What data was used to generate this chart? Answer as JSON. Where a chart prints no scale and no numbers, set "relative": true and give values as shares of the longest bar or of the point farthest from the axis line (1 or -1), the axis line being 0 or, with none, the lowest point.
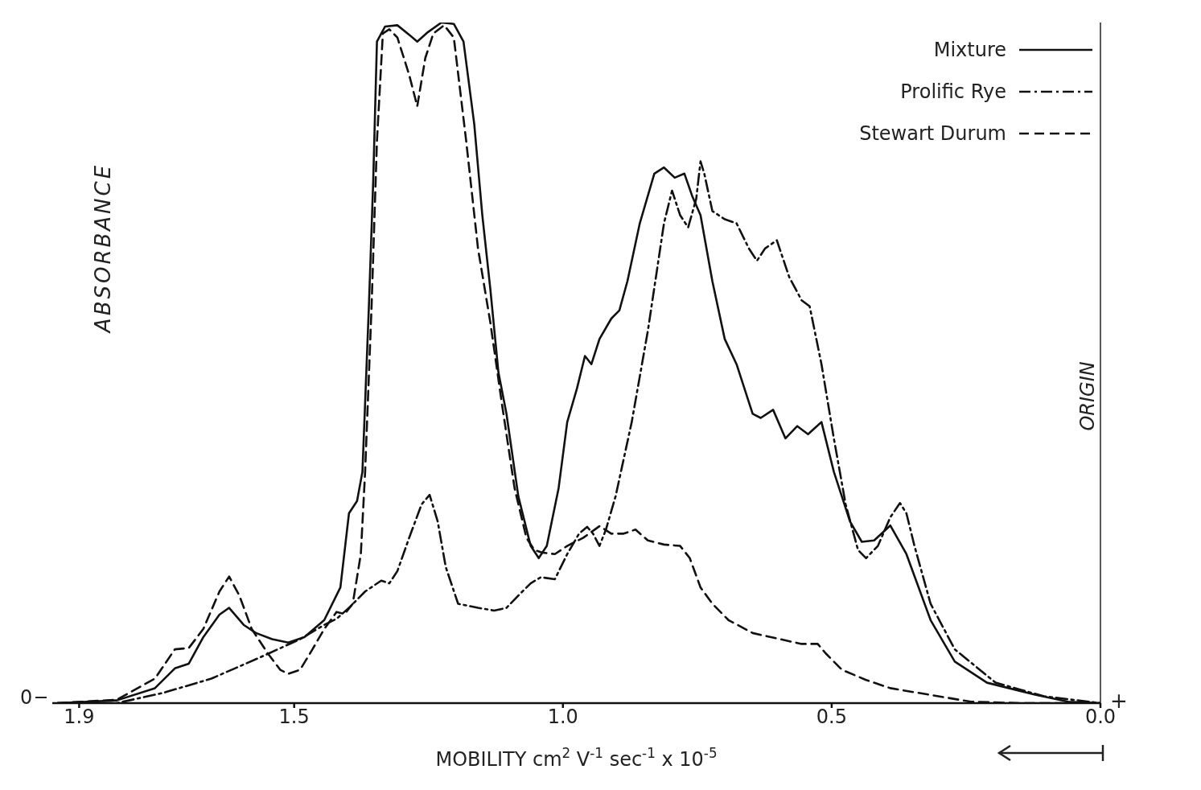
{
  "chart_data": {
    "type": "line",
    "relative": true,
    "xlabel": "MOBILITY cm$^{2}$ V$^{-1}$ sec$^{-1}$ x 10$^{-5}$",
    "ylabel": "ABSORBANCE",
    "xlim": [
      1.95,
      0
    ],
    "xticks": [
      1.9,
      1.5,
      {
        "value": 1,
        "label": "1.0"
      },
      0.5,
      {
        "value": 0,
        "label": "0.0"
      }
    ],
    "grid": false,
    "legend": "top right",
    "marker": "none",
    "annotations": [
      "0",
      "+"
    ],
    "ref_lines": [
      {
        "axis": "x",
        "value": 0,
        "label": "ORIGIN",
        "color": "#222222"
      }
    ],
    "series": [
      {
        "name": "Mixture",
        "color": "#111111",
        "line_style": "solid",
        "x": [
          1.94,
          1.83,
          1.759,
          1.722,
          1.696,
          1.669,
          1.639,
          1.621,
          1.594,
          1.571,
          1.541,
          1.511,
          1.481,
          1.444,
          1.414,
          1.398,
          1.383,
          1.373,
          1.361,
          1.353,
          1.346,
          1.331,
          1.308,
          1.286,
          1.271,
          1.251,
          1.226,
          1.203,
          1.185,
          1.165,
          1.15,
          1.135,
          1.12,
          1.105,
          1.083,
          1.06,
          1.045,
          1.03,
          1.008,
          0.992,
          0.974,
          0.959,
          0.947,
          0.932,
          0.91,
          0.895,
          0.88,
          0.857,
          0.83,
          0.812,
          0.792,
          0.774,
          0.759,
          0.744,
          0.722,
          0.699,
          0.677,
          0.647,
          0.632,
          0.609,
          0.586,
          0.564,
          0.544,
          0.519,
          0.496,
          0.466,
          0.444,
          0.421,
          0.391,
          0.361,
          0.316,
          0.271,
          0.211,
          0.12,
          0.06,
          0
        ],
        "values": [
          0,
          0.004,
          0.022,
          0.051,
          0.058,
          0.097,
          0.13,
          0.14,
          0.115,
          0.103,
          0.094,
          0.089,
          0.097,
          0.122,
          0.17,
          0.279,
          0.297,
          0.34,
          0.583,
          0.766,
          0.972,
          0.994,
          0.996,
          0.982,
          0.972,
          0.986,
          1,
          0.998,
          0.972,
          0.851,
          0.717,
          0.608,
          0.486,
          0.425,
          0.304,
          0.231,
          0.213,
          0.231,
          0.316,
          0.413,
          0.462,
          0.51,
          0.498,
          0.535,
          0.565,
          0.577,
          0.62,
          0.705,
          0.778,
          0.787,
          0.772,
          0.778,
          0.744,
          0.717,
          0.62,
          0.535,
          0.498,
          0.425,
          0.419,
          0.431,
          0.389,
          0.407,
          0.395,
          0.413,
          0.34,
          0.267,
          0.237,
          0.239,
          0.261,
          0.219,
          0.122,
          0.061,
          0.03,
          0.012,
          0.002,
          0
        ]
      },
      {
        "name": "Prolific Rye",
        "color": "#111111",
        "line_style": "dashdot",
        "x": [
          1.94,
          1.83,
          1.744,
          1.654,
          1.564,
          1.489,
          1.444,
          1.421,
          1.398,
          1.368,
          1.338,
          1.323,
          1.308,
          1.286,
          1.263,
          1.248,
          1.233,
          1.218,
          1.195,
          1.158,
          1.128,
          1.105,
          1.083,
          1.06,
          1.041,
          1.015,
          0.992,
          0.97,
          0.955,
          0.944,
          0.932,
          0.92,
          0.902,
          0.872,
          0.842,
          0.812,
          0.797,
          0.782,
          0.767,
          0.752,
          0.744,
          0.737,
          0.722,
          0.699,
          0.677,
          0.654,
          0.639,
          0.624,
          0.602,
          0.579,
          0.556,
          0.541,
          0.519,
          0.496,
          0.474,
          0.451,
          0.436,
          0.414,
          0.391,
          0.373,
          0.361,
          0.346,
          0.316,
          0.271,
          0.195,
          0.105,
          0
        ],
        "values": [
          0,
          0,
          0.015,
          0.036,
          0.067,
          0.094,
          0.115,
          0.124,
          0.14,
          0.164,
          0.18,
          0.176,
          0.194,
          0.243,
          0.292,
          0.306,
          0.267,
          0.2,
          0.146,
          0.14,
          0.136,
          0.14,
          0.158,
          0.176,
          0.185,
          0.182,
          0.219,
          0.249,
          0.259,
          0.249,
          0.231,
          0.255,
          0.304,
          0.413,
          0.547,
          0.705,
          0.753,
          0.717,
          0.699,
          0.741,
          0.796,
          0.778,
          0.723,
          0.711,
          0.705,
          0.668,
          0.65,
          0.668,
          0.68,
          0.626,
          0.592,
          0.583,
          0.498,
          0.389,
          0.292,
          0.225,
          0.213,
          0.231,
          0.273,
          0.294,
          0.279,
          0.231,
          0.146,
          0.079,
          0.03,
          0.01,
          0
        ]
      },
      {
        "name": "Stewart Durum",
        "color": "#111111",
        "line_style": "dashed",
        "x": [
          1.94,
          1.83,
          1.759,
          1.722,
          1.696,
          1.669,
          1.639,
          1.621,
          1.602,
          1.579,
          1.549,
          1.526,
          1.511,
          1.489,
          1.466,
          1.444,
          1.421,
          1.406,
          1.391,
          1.376,
          1.368,
          1.356,
          1.346,
          1.335,
          1.323,
          1.308,
          1.286,
          1.271,
          1.256,
          1.241,
          1.221,
          1.203,
          1.18,
          1.158,
          1.135,
          1.113,
          1.09,
          1.068,
          1.053,
          1.038,
          1.015,
          0.992,
          0.962,
          0.932,
          0.91,
          0.887,
          0.865,
          0.842,
          0.812,
          0.782,
          0.764,
          0.744,
          0.722,
          0.692,
          0.647,
          0.602,
          0.556,
          0.526,
          0.511,
          0.481,
          0.436,
          0.391,
          0.316,
          0.241,
          0.15,
          0
        ],
        "values": [
          0,
          0.005,
          0.036,
          0.079,
          0.081,
          0.109,
          0.164,
          0.186,
          0.158,
          0.109,
          0.073,
          0.049,
          0.043,
          0.049,
          0.079,
          0.109,
          0.134,
          0.131,
          0.146,
          0.219,
          0.34,
          0.583,
          0.826,
          0.984,
          0.99,
          0.978,
          0.923,
          0.877,
          0.948,
          0.984,
          0.996,
          0.978,
          0.826,
          0.668,
          0.559,
          0.437,
          0.316,
          0.243,
          0.225,
          0.221,
          0.219,
          0.231,
          0.243,
          0.26,
          0.249,
          0.249,
          0.255,
          0.239,
          0.233,
          0.231,
          0.213,
          0.17,
          0.146,
          0.122,
          0.103,
          0.095,
          0.087,
          0.087,
          0.073,
          0.049,
          0.034,
          0.022,
          0.012,
          0.002,
          0,
          0
        ]
      }
    ]
  }
}
